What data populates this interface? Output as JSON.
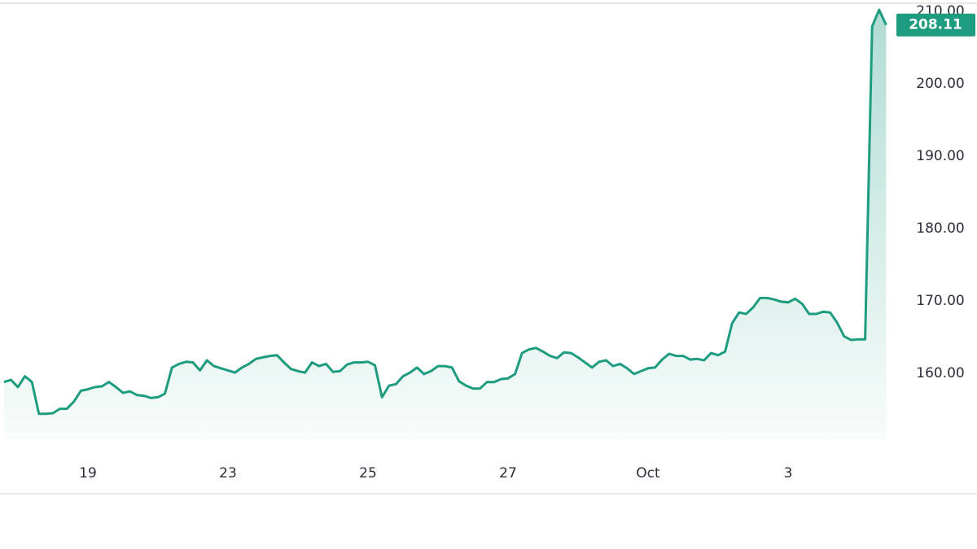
{
  "chart_data": {
    "type": "area",
    "categories": [
      null,
      null,
      null,
      null,
      null,
      null,
      null,
      null,
      null,
      null,
      null,
      null,
      "19",
      null,
      null,
      null,
      null,
      null,
      null,
      null,
      null,
      null,
      null,
      null,
      null,
      null,
      null,
      null,
      null,
      null,
      null,
      null,
      "23",
      null,
      null,
      null,
      null,
      null,
      null,
      null,
      null,
      null,
      null,
      null,
      null,
      null,
      null,
      null,
      null,
      null,
      null,
      null,
      "25",
      null,
      null,
      null,
      null,
      null,
      null,
      null,
      null,
      null,
      null,
      null,
      null,
      null,
      null,
      null,
      null,
      null,
      null,
      null,
      "27",
      null,
      null,
      null,
      null,
      null,
      null,
      null,
      null,
      null,
      null,
      null,
      null,
      null,
      null,
      null,
      null,
      null,
      null,
      null,
      "Oct",
      null,
      null,
      null,
      null,
      null,
      null,
      null,
      null,
      null,
      null,
      null,
      null,
      null,
      null,
      null,
      null,
      null,
      null,
      null,
      "3",
      null,
      null,
      null,
      null,
      null,
      null,
      null,
      null,
      null,
      null,
      null,
      null,
      null,
      null
    ],
    "values": [
      158.8,
      159.1,
      158.1,
      159.6,
      158.8,
      154.4,
      154.4,
      154.5,
      155.1,
      155.1,
      156.1,
      157.6,
      157.8,
      158.1,
      158.2,
      158.8,
      158.1,
      157.3,
      157.5,
      157.0,
      156.9,
      156.6,
      156.7,
      157.2,
      160.8,
      161.3,
      161.6,
      161.5,
      160.4,
      161.8,
      161.0,
      160.7,
      160.4,
      160.1,
      160.8,
      161.3,
      162.0,
      162.2,
      162.4,
      162.5,
      161.5,
      160.6,
      160.3,
      160.1,
      161.5,
      161.0,
      161.3,
      160.2,
      160.3,
      161.2,
      161.5,
      161.5,
      161.6,
      161.1,
      156.7,
      158.3,
      158.5,
      159.6,
      160.1,
      160.8,
      159.9,
      160.3,
      161.0,
      161.0,
      160.8,
      158.9,
      158.3,
      157.9,
      157.9,
      158.8,
      158.8,
      159.2,
      159.3,
      159.9,
      162.8,
      163.3,
      163.5,
      163.0,
      162.4,
      162.1,
      162.9,
      162.8,
      162.2,
      161.5,
      160.8,
      161.6,
      161.8,
      161.0,
      161.3,
      160.7,
      159.9,
      160.3,
      160.7,
      160.8,
      161.9,
      162.7,
      162.4,
      162.4,
      161.9,
      162.0,
      161.8,
      162.8,
      162.5,
      163.0,
      166.9,
      168.4,
      168.2,
      169.1,
      170.4,
      170.4,
      170.2,
      169.9,
      169.8,
      170.3,
      169.6,
      168.2,
      168.2,
      168.5,
      168.4,
      167.0,
      165.1,
      164.6,
      164.7,
      164.7,
      207.9,
      210.2,
      208.11
    ],
    "color": "#1e9c80",
    "ylim": [
      150.9,
      211
    ],
    "yticks": [
      {
        "value": 160,
        "label": "160.00"
      },
      {
        "value": 170,
        "label": "170.00"
      },
      {
        "value": 180,
        "label": "180.00"
      },
      {
        "value": 190,
        "label": "190.00"
      },
      {
        "value": 200,
        "label": "200.00"
      },
      {
        "value": 210,
        "label": "210.00"
      }
    ],
    "grid": false
  }
}
